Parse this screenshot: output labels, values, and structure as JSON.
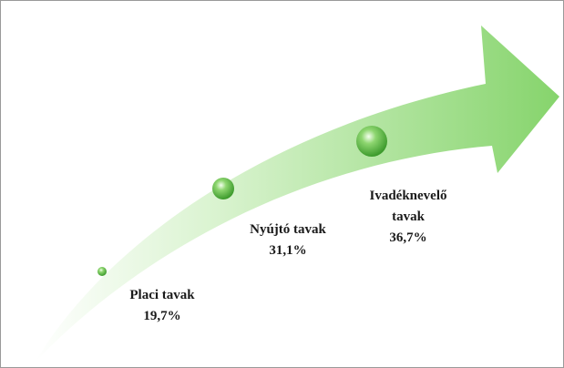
{
  "items": [
    {
      "label": "Placi tavak",
      "value": "19,7%"
    },
    {
      "label": "Nyújtó tavak",
      "value": "31,1%"
    },
    {
      "label": "Ivadéknevelő tavak",
      "value": "36,7%"
    }
  ]
}
